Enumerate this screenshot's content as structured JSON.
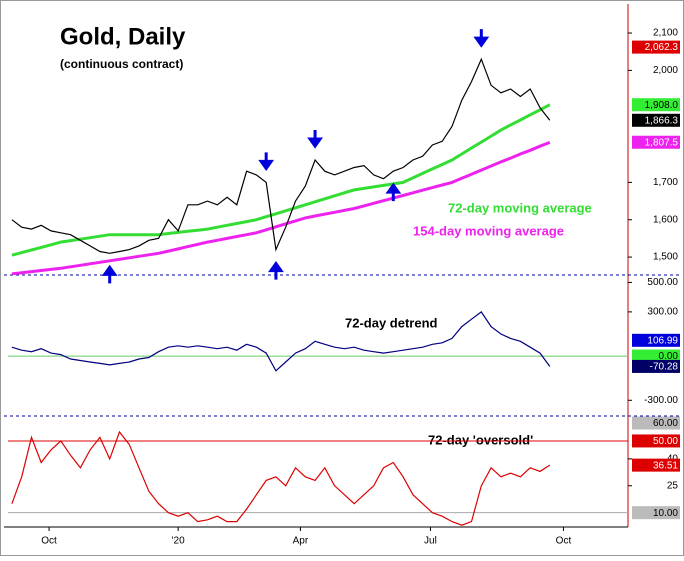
{
  "chart_data": [
    {
      "type": "line",
      "title": "Gold, Daily",
      "subtitle": "(continuous contract)",
      "x": [
        0,
        1,
        2,
        3,
        4,
        5,
        6,
        7,
        8,
        9,
        10,
        11,
        12,
        13,
        14,
        15,
        16,
        17,
        18,
        19,
        20,
        21,
        22,
        23,
        24,
        25,
        26,
        27,
        28,
        29,
        30,
        31,
        32,
        33,
        34,
        35,
        36,
        37,
        38,
        39,
        40,
        41,
        42,
        43,
        44,
        45,
        46,
        47,
        48,
        49,
        50,
        51,
        52,
        53,
        54,
        55
      ],
      "xlim": [
        -0.4,
        63
      ],
      "ylim": [
        1452,
        2167
      ],
      "yticks": [
        {
          "value": 1500,
          "label": "1,500"
        },
        {
          "value": 1600,
          "label": "1,600"
        },
        {
          "value": 1700,
          "label": "1,700"
        },
        {
          "value": 2000,
          "label": "2,000"
        },
        {
          "value": 2100,
          "label": "2,100"
        }
      ],
      "color": "#000000",
      "values": [
        1600,
        1580,
        1575,
        1585,
        1570,
        1565,
        1560,
        1545,
        1530,
        1515,
        1510,
        1515,
        1520,
        1530,
        1545,
        1550,
        1600,
        1570,
        1640,
        1640,
        1650,
        1640,
        1660,
        1640,
        1730,
        1720,
        1700,
        1520,
        1580,
        1650,
        1690,
        1760,
        1730,
        1720,
        1730,
        1740,
        1745,
        1720,
        1710,
        1730,
        1740,
        1760,
        1770,
        1800,
        1810,
        1850,
        1920,
        1970,
        2030,
        1960,
        1940,
        1950,
        1930,
        1950,
        1900,
        1866.3
      ],
      "series": [
        {
          "name": "72-day moving average",
          "color": "#33dd33",
          "values": [
            1505,
            1512,
            1519,
            1526,
            1533,
            1540,
            1544,
            1548,
            1552,
            1556,
            1560,
            1560,
            1560,
            1560,
            1560,
            1560,
            1563,
            1566,
            1569,
            1572,
            1575,
            1580,
            1585,
            1590,
            1595,
            1600,
            1608,
            1616,
            1624,
            1632,
            1640,
            1648,
            1656,
            1664,
            1672,
            1680,
            1684,
            1688,
            1692,
            1696,
            1700,
            1712,
            1724,
            1736,
            1748,
            1760,
            1776,
            1792,
            1808,
            1824,
            1840,
            1854,
            1867,
            1881,
            1894,
            1908
          ]
        },
        {
          "name": "154-day moving average",
          "color": "#ee22ee",
          "values": [
            1455,
            1458,
            1461,
            1464,
            1467,
            1470,
            1474,
            1478,
            1482,
            1486,
            1490,
            1494,
            1498,
            1502,
            1506,
            1510,
            1516,
            1522,
            1528,
            1534,
            1540,
            1545,
            1550,
            1555,
            1560,
            1565,
            1573,
            1581,
            1589,
            1597,
            1605,
            1610,
            1615,
            1620,
            1625,
            1630,
            1637,
            1644,
            1651,
            1658,
            1665,
            1672,
            1679,
            1686,
            1693,
            1700,
            1711,
            1722,
            1733,
            1744,
            1755,
            1765,
            1776,
            1786,
            1797,
            1807
          ]
        }
      ],
      "tags": [
        {
          "value": 2062.3,
          "label": "2,062.3",
          "color": "#dd0000"
        },
        {
          "value": 1908.0,
          "label": "1,908.0",
          "color": "#33ee33"
        },
        {
          "value": 1866.3,
          "label": "1,866.3",
          "color": "#000000"
        },
        {
          "value": 1807.5,
          "label": "1,807.5",
          "color": "#ee22ee"
        }
      ],
      "arrows": [
        {
          "x": 10,
          "direction": "up"
        },
        {
          "x": 26,
          "direction": "down"
        },
        {
          "x": 27,
          "direction": "up"
        },
        {
          "x": 31,
          "direction": "down"
        },
        {
          "x": 39,
          "direction": "up"
        },
        {
          "x": 48,
          "direction": "down"
        }
      ],
      "arrow_color": "#0000dd"
    },
    {
      "type": "line",
      "title": "72-day detrend",
      "x": [
        0,
        1,
        2,
        3,
        4,
        5,
        6,
        7,
        8,
        9,
        10,
        11,
        12,
        13,
        14,
        15,
        16,
        17,
        18,
        19,
        20,
        21,
        22,
        23,
        24,
        25,
        26,
        27,
        28,
        29,
        30,
        31,
        32,
        33,
        34,
        35,
        36,
        37,
        38,
        39,
        40,
        41,
        42,
        43,
        44,
        45,
        46,
        47,
        48,
        49,
        50,
        51,
        52,
        53,
        54,
        55
      ],
      "xlim": [
        -0.4,
        63
      ],
      "ylim": [
        -400,
        530
      ],
      "yticks": [
        {
          "value": 500,
          "label": "500.00"
        },
        {
          "value": 300,
          "label": "300.00"
        },
        {
          "value": -300,
          "label": "-300.00"
        }
      ],
      "color": "#000080",
      "values": [
        60,
        40,
        30,
        50,
        20,
        10,
        -20,
        -30,
        -40,
        -50,
        -60,
        -50,
        -40,
        -20,
        -10,
        30,
        60,
        70,
        60,
        70,
        60,
        50,
        60,
        40,
        80,
        60,
        20,
        -100,
        -40,
        20,
        50,
        100,
        80,
        60,
        50,
        60,
        40,
        30,
        20,
        30,
        40,
        50,
        60,
        80,
        90,
        120,
        200,
        250,
        300,
        200,
        150,
        120,
        100,
        60,
        20,
        -70.28
      ],
      "hlines": [
        {
          "value": 0,
          "color": "#66cc66"
        }
      ],
      "tags": [
        {
          "value": 106.99,
          "label": "106.99",
          "color": "#0000dd"
        },
        {
          "value": 0,
          "label": "0.00",
          "color": "#33ee33"
        },
        {
          "value": -70.28,
          "label": "-70.28",
          "color": "#000066"
        }
      ]
    },
    {
      "type": "line",
      "title": "72-day 'oversold'",
      "x": [
        0,
        1,
        2,
        3,
        4,
        5,
        6,
        7,
        8,
        9,
        10,
        11,
        12,
        13,
        14,
        15,
        16,
        17,
        18,
        19,
        20,
        21,
        22,
        23,
        24,
        25,
        26,
        27,
        28,
        29,
        30,
        31,
        32,
        33,
        34,
        35,
        36,
        37,
        38,
        39,
        40,
        41,
        42,
        43,
        44,
        45,
        46,
        47,
        48,
        49,
        50,
        51,
        52,
        53,
        54,
        55
      ],
      "xlim": [
        -0.4,
        63
      ],
      "xticks": [
        {
          "value": 3.8,
          "label": "Oct"
        },
        {
          "value": 17,
          "label": "'20"
        },
        {
          "value": 29.5,
          "label": "Apr"
        },
        {
          "value": 42.8,
          "label": "Jul"
        },
        {
          "value": 56.4,
          "label": "Oct"
        }
      ],
      "ylim": [
        2,
        62.8
      ],
      "yticks": [
        40,
        25
      ],
      "color": "#dd0000",
      "values": [
        15,
        30,
        52,
        38,
        45,
        50,
        42,
        35,
        45,
        52,
        40,
        55,
        48,
        35,
        22,
        15,
        10,
        8,
        10,
        5,
        6,
        8,
        5,
        5,
        12,
        20,
        28,
        30,
        25,
        35,
        30,
        28,
        35,
        25,
        20,
        15,
        20,
        25,
        35,
        38,
        30,
        20,
        15,
        10,
        8,
        5,
        3,
        5,
        25,
        35,
        30,
        32,
        30,
        35,
        33,
        36.51
      ],
      "hlines": [
        {
          "value": 50,
          "color": "#dd0000"
        },
        {
          "value": 10,
          "color": "#aaaaaa"
        }
      ],
      "tags": [
        {
          "value": 60,
          "label": "60.00",
          "color": "#bbbbbb"
        },
        {
          "value": 50,
          "label": "50.00",
          "color": "#dd0000"
        },
        {
          "value": 36.51,
          "label": "36.51",
          "color": "#dd0000"
        },
        {
          "value": 10,
          "label": "10.00",
          "color": "#bbbbbb"
        }
      ]
    }
  ]
}
